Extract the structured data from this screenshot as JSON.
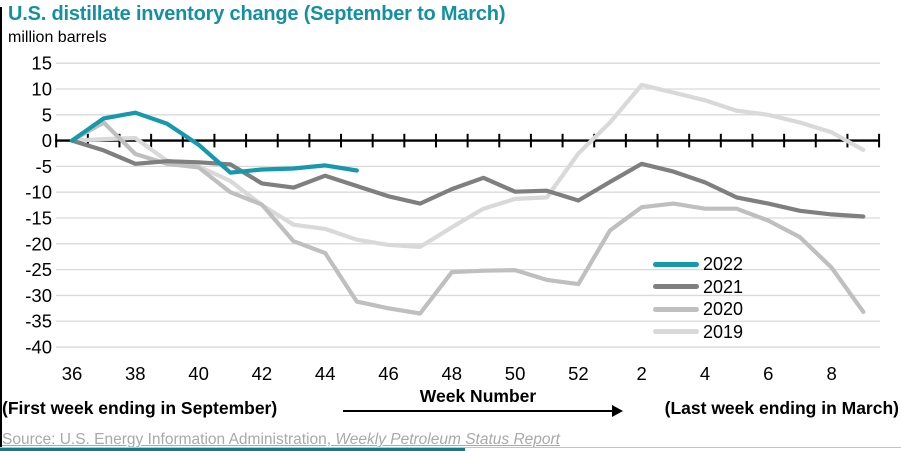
{
  "header": {
    "title": "U.S. distillate inventory change (September to March)"
  },
  "chart_data": {
    "type": "line",
    "title": "U.S. distillate inventory change (September to March)",
    "ylabel": "million barrels",
    "xlabel": "Week Number",
    "ylim": [
      -40,
      15
    ],
    "ytick_step": 5,
    "grid": "horizontal",
    "legend_position": "inside-right",
    "categories": [
      "36",
      "37",
      "38",
      "39",
      "40",
      "41",
      "42",
      "43",
      "44",
      "45",
      "46",
      "47",
      "48",
      "49",
      "50",
      "51",
      "52",
      "1",
      "2",
      "3",
      "4",
      "5",
      "6",
      "7",
      "8",
      "9"
    ],
    "xtick_label_indices": [
      0,
      2,
      4,
      6,
      8,
      10,
      12,
      14,
      16,
      18,
      20,
      22,
      24
    ],
    "series": [
      {
        "name": "2019",
        "color": "#d9d9d9",
        "values": [
          0,
          0.3,
          0.5,
          -3.9,
          -5.0,
          -7.8,
          -12.5,
          -16.3,
          -17.1,
          -19.2,
          -20.2,
          -20.6,
          -16.8,
          -13.2,
          -11.3,
          -11.0,
          -2.5,
          3.5,
          10.8,
          9.3,
          7.8,
          5.8,
          5.0,
          3.5,
          1.6,
          -1.8
        ]
      },
      {
        "name": "2020",
        "color": "#bfbfbf",
        "values": [
          0,
          3.5,
          -2.6,
          -4.5,
          -5.2,
          -10.0,
          -12.4,
          -19.5,
          -21.8,
          -31.2,
          -32.5,
          -33.5,
          -25.5,
          -25.2,
          -25.1,
          -27.0,
          -27.8,
          -17.4,
          -12.9,
          -12.2,
          -13.2,
          -13.2,
          -15.5,
          -18.7,
          -24.6,
          -33.2
        ]
      },
      {
        "name": "2021",
        "color": "#7f7f7f",
        "values": [
          0,
          -1.9,
          -4.5,
          -4.0,
          -4.2,
          -4.6,
          -8.3,
          -9.1,
          -6.8,
          -8.8,
          -10.8,
          -12.2,
          -9.4,
          -7.2,
          -9.9,
          -9.7,
          -11.6,
          -8.0,
          -4.5,
          -6.0,
          -8.1,
          -11.0,
          -12.2,
          -13.6,
          -14.3,
          -14.7
        ]
      },
      {
        "name": "2022",
        "color": "#1799ad",
        "values": [
          0,
          4.3,
          5.4,
          3.3,
          -0.8,
          -6.2,
          -5.6,
          -5.4,
          -4.8,
          -5.8,
          null,
          null,
          null,
          null,
          null,
          null,
          null,
          null,
          null,
          null,
          null,
          null,
          null,
          null,
          null,
          null
        ]
      }
    ]
  },
  "annotations": {
    "left": "(First week ending in September)",
    "right": "(Last week ending in March)"
  },
  "source": {
    "prefix": "Source: U.S. Energy Information Administration, ",
    "report": "Weekly Petroleum Status Report"
  },
  "colors": {
    "accent_teal": "#1391a2",
    "axis_black": "#000000",
    "gridline": "#d9d9d9",
    "source_gray": "#a9a9a9"
  }
}
